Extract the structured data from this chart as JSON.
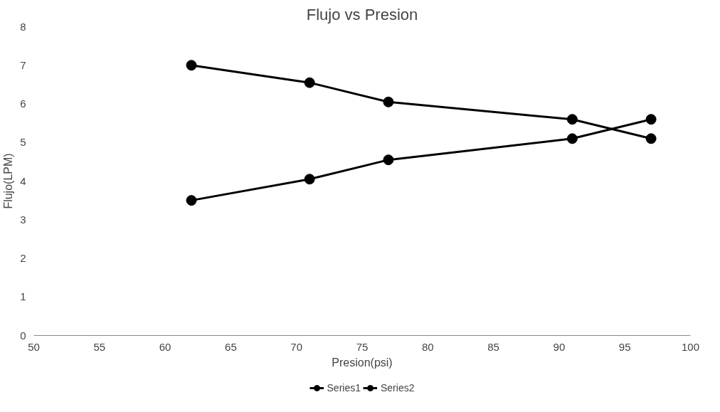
{
  "chart_data": {
    "type": "line",
    "title": "Flujo vs Presion",
    "xlabel": "Presion(psi)",
    "ylabel": "Flujo(LPM)",
    "x": [
      62,
      71,
      77,
      91,
      97
    ],
    "series": [
      {
        "name": "Series1",
        "color": "#000000",
        "values": [
          7.0,
          6.55,
          6.05,
          5.6,
          5.1
        ]
      },
      {
        "name": "Series2",
        "color": "#000000",
        "values": [
          3.5,
          4.05,
          4.55,
          5.1,
          5.6
        ]
      }
    ],
    "xlim": [
      50,
      100
    ],
    "xticks": [
      50,
      55,
      60,
      65,
      70,
      75,
      80,
      85,
      90,
      95,
      100
    ],
    "ylim": [
      0,
      8
    ],
    "yticks": [
      0,
      1,
      2,
      3,
      4,
      5,
      6,
      7,
      8
    ],
    "grid": false,
    "legend": "bottom",
    "marker": "circle",
    "line_style": "solid"
  }
}
